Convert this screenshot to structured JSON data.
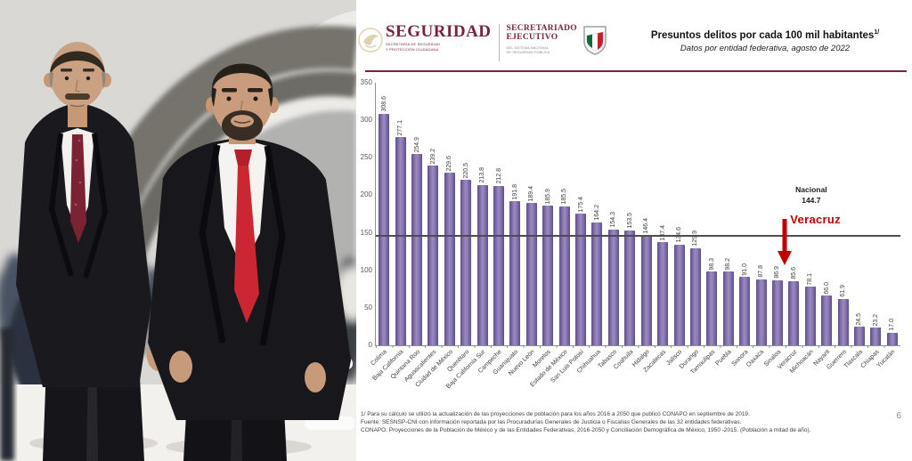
{
  "photo": {
    "alt": "Dos funcionarios de traje oscuro y corbata roja caminan frente a una multitud bajo un arco",
    "colors": {
      "suit": "#17171c",
      "tie_left": "#7b2335",
      "tie_right": "#cc2633",
      "background": "#d9d8d5"
    }
  },
  "slide": {
    "brand": {
      "wordmark": "SEGURIDAD",
      "wordmark_sub1": "SECRETARÍA DE SEGURIDAD",
      "wordmark_sub2": "Y PROTECCIÓN CIUDADANA",
      "org_line1": "SECRETARIADO",
      "org_line2": "EJECUTIVO",
      "org_sub1": "DEL SISTEMA NACIONAL",
      "org_sub2": "DE SEGURIDAD PÚBLICA",
      "accent_color": "#7a2240"
    },
    "header": {
      "title": "Presuntos delitos por cada 100 mil habitantes",
      "title_sup": "1/",
      "subtitle": "Datos por entidad federativa, agosto de 2022"
    },
    "footnotes": [
      "1/ Para su cálculo se utilizó la actualización de las proyecciones de población para los años 2016 a 2050 que publicó CONAPO en septiembre de 2019.",
      "Fuente: SESNSP-CNI con información reportada por las Procuradurías Generales de Justicia o Fiscalías Generales de las 32 entidades federativas.",
      "CONAPO. Proyecciones de la Población de México y de las Entidades Federativas, 2016-2050 y Conciliación Demográfica de México, 1950 -2015. (Población a mitad de año)."
    ],
    "page_number": "6"
  },
  "chart_data": {
    "type": "bar",
    "title": "Presuntos delitos por cada 100 mil habitantes",
    "subtitle": "Datos por entidad federativa, agosto de 2022",
    "categories": [
      "Colima",
      "Baja California",
      "Quintana Roo",
      "Aguascalientes",
      "Ciudad de México",
      "Querétaro",
      "Baja California Sur",
      "Campeche",
      "Guanajuato",
      "Nuevo León",
      "Morelos",
      "Estado de México",
      "San Luis Potosí",
      "Chihuahua",
      "Tabasco",
      "Coahuila",
      "Hidalgo",
      "Zacatecas",
      "Jalisco",
      "Durango",
      "Tamaulipas",
      "Puebla",
      "Sonora",
      "Oaxaca",
      "Sinaloa",
      "Veracruz",
      "Michoacán",
      "Nayarit",
      "Guerrero",
      "Tlaxcala",
      "Chiapas",
      "Yucatán"
    ],
    "values": [
      308.6,
      277.1,
      254.9,
      239.2,
      229.6,
      220.5,
      213.8,
      212.8,
      191.8,
      189.4,
      185.9,
      185.5,
      175.4,
      164.2,
      154.3,
      153.5,
      146.4,
      137.4,
      134.6,
      129.9,
      98.3,
      98.2,
      91.0,
      87.8,
      86.9,
      85.6,
      78.1,
      66.0,
      61.9,
      24.5,
      23.2,
      17.0
    ],
    "ylim": [
      0,
      350
    ],
    "yticks": [
      0,
      50,
      100,
      150,
      200,
      250,
      300,
      350
    ],
    "grid": false,
    "legend": "none",
    "bar_color_center": "#9a8cc2",
    "bar_color_edge": "#5e4b87",
    "reference_line": {
      "label": "Nacional",
      "value": 144.7,
      "color": "#4d4d4d"
    },
    "annotation": {
      "label": "Veracruz",
      "category": "Veracruz",
      "value": 85.6,
      "color": "#c00000"
    }
  }
}
